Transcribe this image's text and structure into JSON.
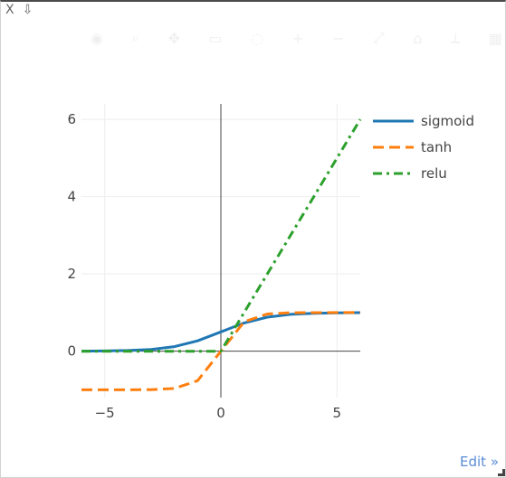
{
  "window": {
    "close_label": "X",
    "download_label": "⇩"
  },
  "modebar": [
    "camera-icon",
    "zoom-icon",
    "pan-icon",
    "select-icon",
    "lasso-icon",
    "zoom-in-icon",
    "zoom-out-icon",
    "autoscale-icon",
    "reset-icon",
    "spike-icon",
    "plotly-logo-icon"
  ],
  "edit_link": "Edit »",
  "chart_data": {
    "type": "line",
    "title": "",
    "xlabel": "",
    "ylabel": "",
    "xlim": [
      -6,
      6
    ],
    "ylim": [
      -1.2,
      6.4
    ],
    "xticks": [
      -5,
      0,
      5
    ],
    "xtick_labels": [
      "−5",
      "0",
      "5"
    ],
    "yticks": [
      0,
      2,
      4,
      6
    ],
    "ytick_labels": [
      "0",
      "2",
      "4",
      "6"
    ],
    "grid": true,
    "legend_position": "top-right",
    "x": [
      -6,
      -5,
      -4,
      -3,
      -2,
      -1,
      0,
      1,
      2,
      3,
      4,
      5,
      6
    ],
    "series": [
      {
        "name": "sigmoid",
        "color": "#1f77b4",
        "dash": "solid",
        "values": [
          0.002,
          0.007,
          0.018,
          0.047,
          0.119,
          0.269,
          0.5,
          0.731,
          0.881,
          0.953,
          0.982,
          0.993,
          0.998
        ]
      },
      {
        "name": "tanh",
        "color": "#ff7f0e",
        "dash": "dash",
        "values": [
          -1.0,
          -1.0,
          -0.999,
          -0.995,
          -0.964,
          -0.762,
          0.0,
          0.762,
          0.964,
          0.995,
          0.999,
          1.0,
          1.0
        ]
      },
      {
        "name": "relu",
        "color": "#2ca02c",
        "dash": "dashdot",
        "values": [
          0,
          0,
          0,
          0,
          0,
          0,
          0,
          1,
          2,
          3,
          4,
          5,
          6
        ]
      }
    ]
  }
}
